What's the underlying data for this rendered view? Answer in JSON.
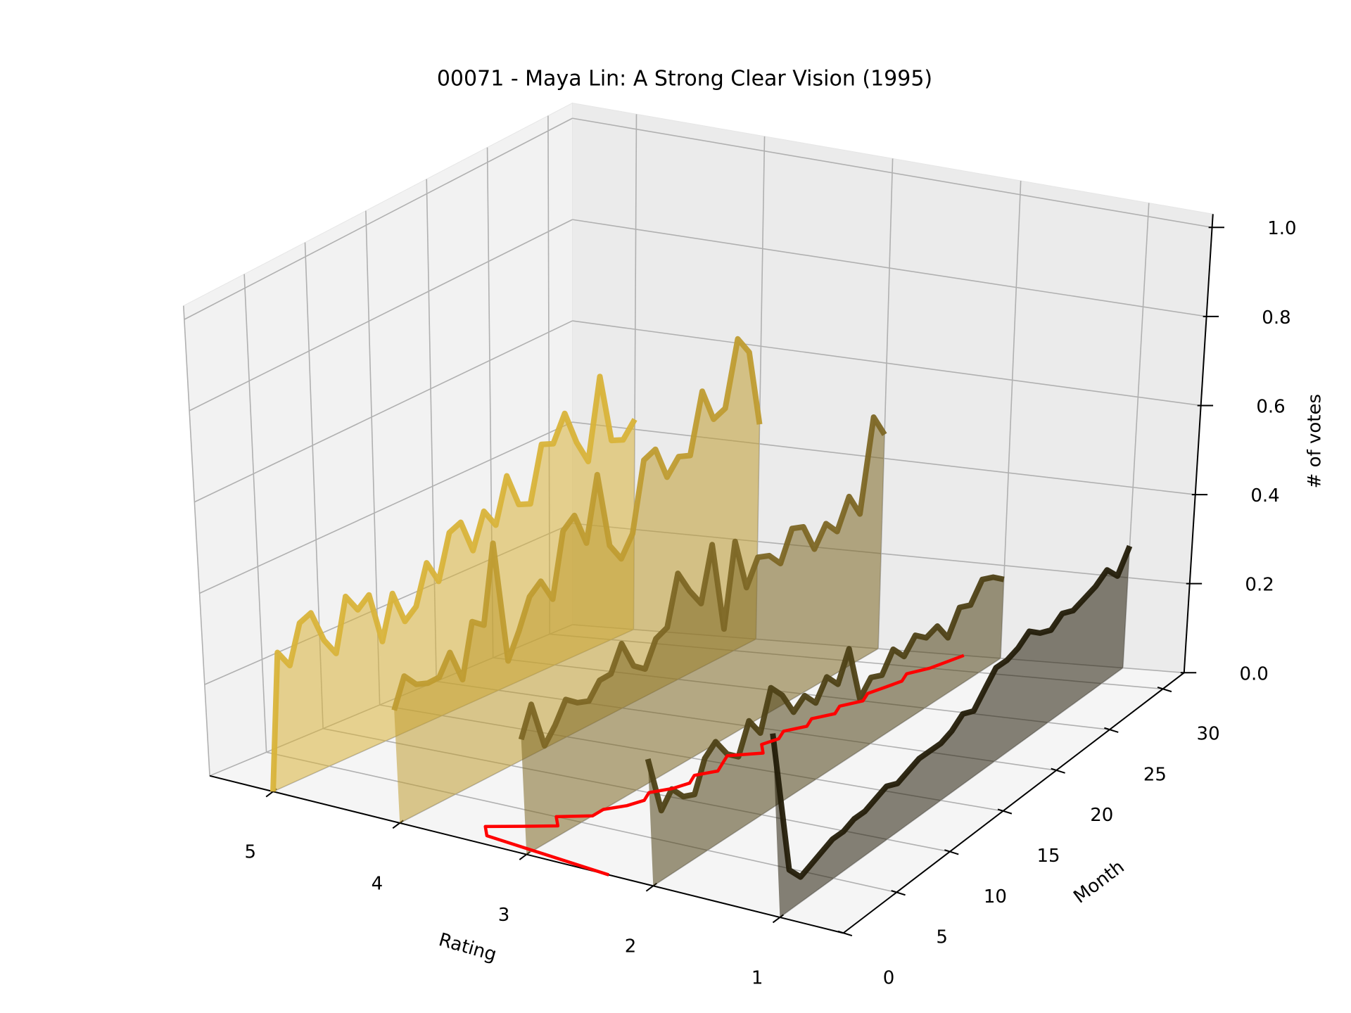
{
  "chart_data": {
    "type": "waterfall3d",
    "title": "00071 - Maya Lin: A Strong Clear Vision (1995)",
    "x_label": "Rating",
    "y_label": "Month",
    "z_label": "# of votes",
    "xlim": [
      5.5,
      0.5
    ],
    "xticks": [
      1,
      2,
      3,
      4,
      5
    ],
    "ylim": [
      0,
      32
    ],
    "yticks": [
      0,
      5,
      10,
      15,
      20,
      25,
      30
    ],
    "zlim": [
      0,
      1.03
    ],
    "zticks": [
      {
        "value": 0,
        "label": "0.0"
      },
      0.2,
      0.4,
      0.6,
      0.8,
      {
        "value": 1,
        "label": "1.0"
      }
    ],
    "grid": true,
    "months": [
      0,
      1,
      2,
      3,
      4,
      5,
      6,
      7,
      8,
      9,
      10,
      11,
      12,
      13,
      14,
      15,
      16,
      17,
      18,
      19,
      20,
      21,
      22,
      23,
      24,
      25,
      26,
      27,
      28,
      29,
      30,
      31,
      32
    ],
    "series": [
      {
        "rating": 5,
        "color": "#d8b33a",
        "values": [
          0,
          0.29,
          0.25,
          0.33,
          0.34,
          0.27,
          0.23,
          0.34,
          0.3,
          0.32,
          0.21,
          0.3,
          0.23,
          0.25,
          0.33,
          0.28,
          0.37,
          0.38,
          0.31,
          0.38,
          0.34,
          0.43,
          0.36,
          0.35,
          0.46,
          0.45,
          0.5,
          0.43,
          0.38,
          0.54,
          0.4,
          0.39,
          0.42
        ]
      },
      {
        "rating": 4,
        "color": "#bf9c32",
        "values": [
          0.24,
          0.3,
          0.27,
          0.26,
          0.26,
          0.3,
          0.23,
          0.34,
          0.32,
          0.48,
          0.22,
          0.27,
          0.33,
          0.35,
          0.3,
          0.43,
          0.45,
          0.38,
          0.51,
          0.35,
          0.31,
          0.35,
          0.49,
          0.5,
          0.43,
          0.46,
          0.45,
          0.57,
          0.5,
          0.51,
          0.64,
          0.6,
          0.44
        ]
      },
      {
        "rating": 3,
        "color": "#7d6725",
        "values": [
          0.24,
          0.3,
          0.2,
          0.23,
          0.27,
          0.25,
          0.24,
          0.27,
          0.27,
          0.32,
          0.26,
          0.24,
          0.29,
          0.3,
          0.4,
          0.35,
          0.31,
          0.42,
          0.23,
          0.4,
          0.29,
          0.34,
          0.33,
          0.3,
          0.36,
          0.35,
          0.29,
          0.33,
          0.3,
          0.36,
          0.31,
          0.5,
          0.45
        ]
      },
      {
        "rating": 2,
        "color": "#4e4116",
        "values": [
          0.26,
          0.14,
          0.17,
          0.14,
          0.13,
          0.19,
          0.21,
          0.17,
          0.15,
          0.21,
          0.17,
          0.25,
          0.22,
          0.17,
          0.19,
          0.16,
          0.2,
          0.17,
          0.23,
          0.11,
          0.14,
          0.13,
          0.17,
          0.14,
          0.17,
          0.15,
          0.16,
          0.12,
          0.17,
          0.16,
          0.2,
          0.19,
          0.17
        ]
      },
      {
        "rating": 1,
        "color": "#241e09",
        "values": [
          0.37,
          0.08,
          0.05,
          0.06,
          0.07,
          0.08,
          0.08,
          0.09,
          0.09,
          0.1,
          0.11,
          0.1,
          0.11,
          0.12,
          0.12,
          0.12,
          0.13,
          0.15,
          0.14,
          0.17,
          0.2,
          0.2,
          0.21,
          0.23,
          0.21,
          0.2,
          0.22,
          0.21,
          0.22,
          0.23,
          0.25,
          0.22,
          0.27
        ]
      }
    ],
    "mean_rating": {
      "color": "#ff0000",
      "values": [
        2.35,
        3.4,
        3.5,
        3.3,
        3.1,
        3.2,
        3.0,
        3.0,
        2.9,
        2.85,
        2.9,
        2.8,
        2.75,
        2.8,
        2.7,
        2.75,
        2.8,
        2.6,
        2.7,
        2.65,
        2.7,
        2.6,
        2.65,
        2.55,
        2.6,
        2.5,
        2.55,
        2.5,
        2.45,
        2.5,
        2.4,
        2.35,
        2.3
      ]
    }
  }
}
